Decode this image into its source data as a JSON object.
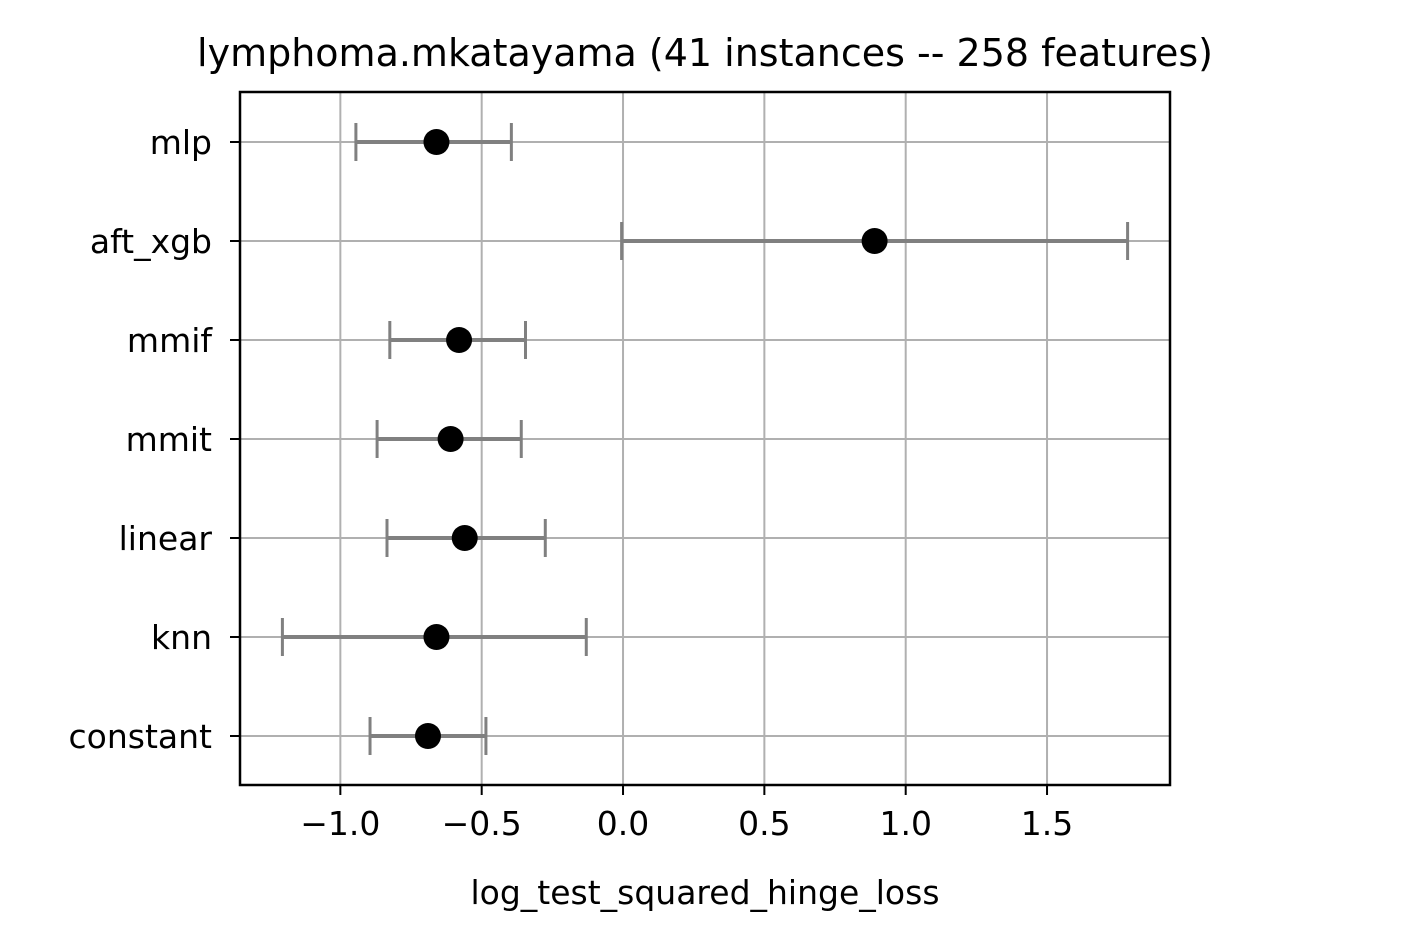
{
  "chart_data": {
    "type": "scatter",
    "title": "lymphoma.mkatayama (41 instances -- 258 features)",
    "xlabel": "log_test_squared_hinge_loss",
    "ylabel": "",
    "xlim": [
      -1.355,
      1.935
    ],
    "xticks": [
      -1.0,
      -0.5,
      0.0,
      0.5,
      1.0,
      1.5
    ],
    "xtick_labels": [
      "−1.0",
      "−0.5",
      "0.0",
      "0.5",
      "1.0",
      "1.5"
    ],
    "grid": true,
    "categories": [
      "mlp",
      "aft_xgb",
      "mmif",
      "mmit",
      "linear",
      "knn",
      "constant"
    ],
    "mean": [
      -0.66,
      0.89,
      -0.58,
      -0.61,
      -0.56,
      -0.66,
      -0.69
    ],
    "lower": [
      -0.945,
      -0.005,
      -0.825,
      -0.87,
      -0.835,
      -1.205,
      -0.895
    ],
    "upper": [
      -0.395,
      1.785,
      -0.345,
      -0.36,
      -0.275,
      -0.13,
      -0.485
    ],
    "colors": {
      "point": "#000000",
      "errorbar": "#808080",
      "grid": "#b0b0b0",
      "axes": "#000000"
    }
  }
}
